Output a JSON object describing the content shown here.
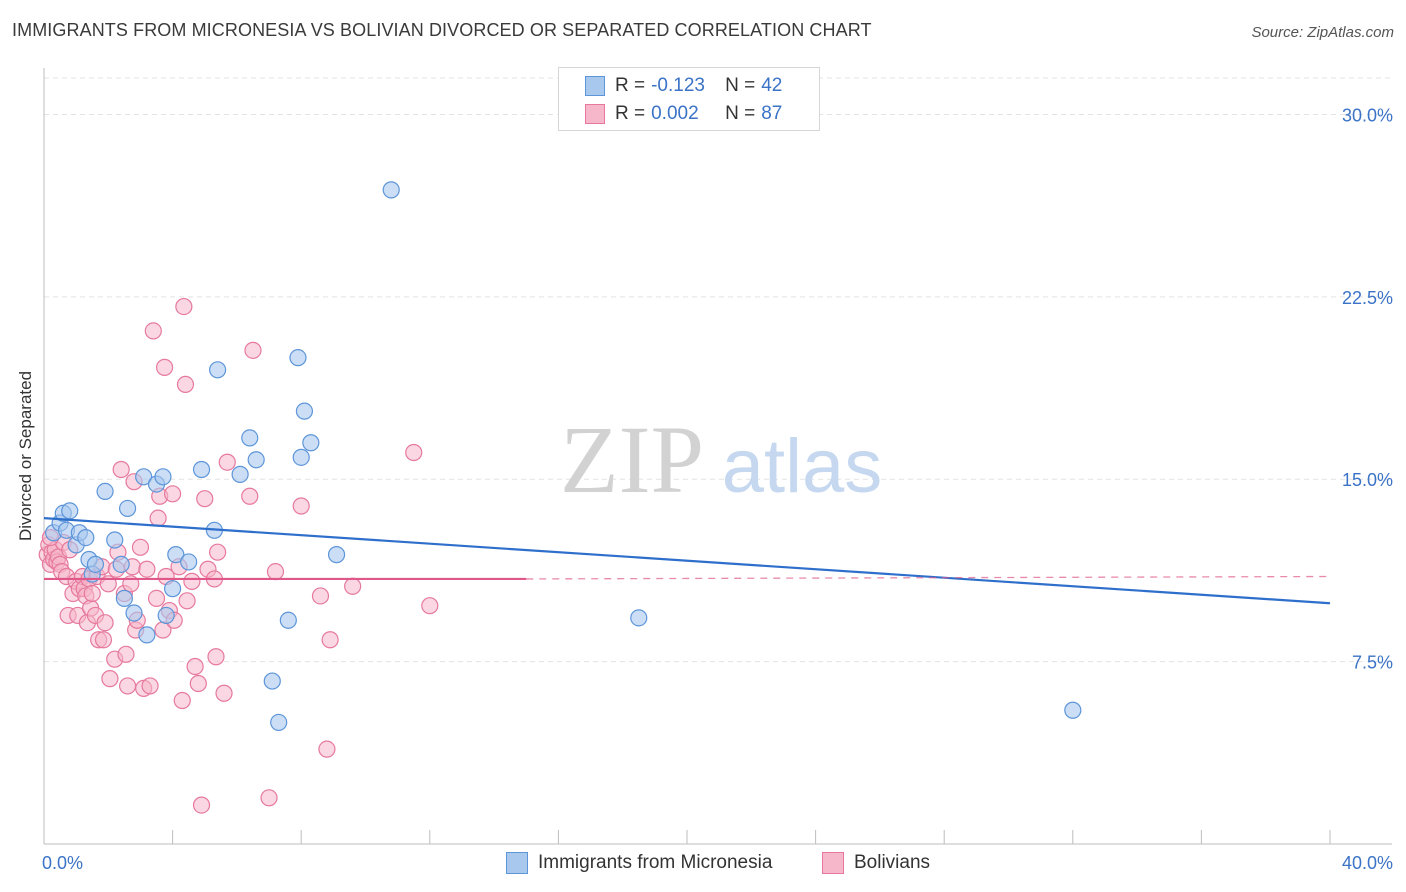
{
  "header": {
    "title": "IMMIGRANTS FROM MICRONESIA VS BOLIVIAN DIVORCED OR SEPARATED CORRELATION CHART",
    "source": "Source: ZipAtlas.com"
  },
  "watermark": {
    "zip": "ZIP",
    "atlas": "atlas"
  },
  "legend": {
    "rows": [
      {
        "r_label": "R = ",
        "r_value": "-0.123",
        "n_label": "N = ",
        "n_value": "42"
      },
      {
        "r_label": "R = ",
        "r_value": "0.002",
        "n_label": "N = ",
        "n_value": "87"
      }
    ]
  },
  "bottom_legend": {
    "series_a": "Immigrants from Micronesia",
    "series_b": "Bolivians"
  },
  "colors": {
    "blue_fill": "#a9c8ee",
    "blue_stroke": "#5d95d9",
    "blue_line": "#2f6fcc",
    "pink_fill": "#f6b7cb",
    "pink_stroke": "#e6799d",
    "pink_line": "#e0588a",
    "tick_text": "#3b73c6",
    "grid": "#e3e3e3"
  },
  "chart_data": {
    "type": "scatter",
    "title": "IMMIGRANTS FROM MICRONESIA VS BOLIVIAN DIVORCED OR SEPARATED CORRELATION CHART",
    "xlabel": "",
    "ylabel": "Divorced or Separated",
    "xlim": [
      0,
      40
    ],
    "ylim": [
      0,
      31.5
    ],
    "x_tick_labels": [
      "0.0%",
      "40.0%"
    ],
    "y_ticks": [
      7.5,
      15.0,
      22.5,
      30.0
    ],
    "y_tick_labels": [
      "7.5%",
      "15.0%",
      "22.5%",
      "30.0%"
    ],
    "series": [
      {
        "name": "Immigrants from Micronesia",
        "R": -0.123,
        "N": 42,
        "trend": {
          "x": [
            0,
            40
          ],
          "y": [
            13.4,
            9.9
          ]
        },
        "points": [
          [
            0.3,
            12.8
          ],
          [
            0.5,
            13.2
          ],
          [
            0.6,
            13.6
          ],
          [
            0.7,
            12.9
          ],
          [
            0.8,
            13.7
          ],
          [
            1.0,
            12.3
          ],
          [
            1.1,
            12.8
          ],
          [
            1.3,
            12.6
          ],
          [
            1.4,
            11.7
          ],
          [
            1.5,
            11.1
          ],
          [
            1.6,
            11.5
          ],
          [
            1.9,
            14.5
          ],
          [
            2.2,
            12.5
          ],
          [
            2.4,
            11.5
          ],
          [
            2.5,
            10.1
          ],
          [
            2.6,
            13.8
          ],
          [
            2.8,
            9.5
          ],
          [
            3.1,
            15.1
          ],
          [
            3.2,
            8.6
          ],
          [
            3.5,
            14.8
          ],
          [
            3.7,
            15.1
          ],
          [
            3.8,
            9.4
          ],
          [
            4.0,
            10.5
          ],
          [
            4.1,
            11.9
          ],
          [
            4.5,
            11.6
          ],
          [
            4.9,
            15.4
          ],
          [
            5.3,
            12.9
          ],
          [
            5.4,
            19.5
          ],
          [
            6.1,
            15.2
          ],
          [
            6.4,
            16.7
          ],
          [
            6.6,
            15.8
          ],
          [
            7.1,
            6.7
          ],
          [
            7.3,
            5.0
          ],
          [
            7.6,
            9.2
          ],
          [
            7.9,
            20.0
          ],
          [
            8.0,
            15.9
          ],
          [
            8.1,
            17.8
          ],
          [
            8.3,
            16.5
          ],
          [
            9.1,
            11.9
          ],
          [
            10.8,
            26.9
          ],
          [
            18.5,
            9.3
          ],
          [
            32.0,
            5.5
          ]
        ]
      },
      {
        "name": "Bolivians",
        "R": 0.002,
        "N": 87,
        "trend": {
          "x": [
            0,
            15
          ],
          "y": [
            10.9,
            10.9
          ]
        },
        "trend_dashed": {
          "x": [
            15,
            40
          ],
          "y": [
            10.9,
            11.0
          ]
        },
        "points": [
          [
            0.1,
            11.9
          ],
          [
            0.15,
            12.3
          ],
          [
            0.2,
            11.5
          ],
          [
            0.25,
            12.0
          ],
          [
            0.3,
            11.7
          ],
          [
            0.35,
            12.1
          ],
          [
            0.4,
            11.6
          ],
          [
            0.45,
            11.8
          ],
          [
            0.5,
            11.5
          ],
          [
            0.55,
            11.2
          ],
          [
            0.6,
            12.4
          ],
          [
            0.7,
            11.0
          ],
          [
            0.75,
            9.4
          ],
          [
            0.8,
            12.1
          ],
          [
            0.9,
            10.3
          ],
          [
            1.0,
            10.8
          ],
          [
            1.05,
            9.4
          ],
          [
            1.1,
            10.5
          ],
          [
            1.2,
            11.0
          ],
          [
            1.25,
            10.5
          ],
          [
            1.3,
            10.2
          ],
          [
            1.35,
            9.1
          ],
          [
            1.4,
            10.9
          ],
          [
            1.45,
            9.7
          ],
          [
            1.5,
            10.3
          ],
          [
            1.6,
            9.4
          ],
          [
            1.65,
            11.0
          ],
          [
            1.7,
            8.4
          ],
          [
            1.8,
            11.4
          ],
          [
            1.85,
            8.4
          ],
          [
            1.9,
            9.1
          ],
          [
            2.0,
            10.7
          ],
          [
            2.05,
            6.8
          ],
          [
            2.2,
            7.6
          ],
          [
            2.25,
            11.3
          ],
          [
            2.3,
            12.0
          ],
          [
            2.4,
            15.4
          ],
          [
            2.5,
            10.3
          ],
          [
            2.55,
            7.8
          ],
          [
            2.6,
            6.5
          ],
          [
            2.7,
            10.7
          ],
          [
            2.75,
            11.4
          ],
          [
            2.8,
            14.9
          ],
          [
            2.85,
            8.8
          ],
          [
            2.9,
            9.2
          ],
          [
            3.0,
            12.2
          ],
          [
            3.1,
            6.4
          ],
          [
            3.2,
            11.3
          ],
          [
            3.3,
            6.5
          ],
          [
            3.4,
            21.1
          ],
          [
            3.5,
            10.1
          ],
          [
            3.55,
            13.4
          ],
          [
            3.6,
            14.3
          ],
          [
            3.7,
            8.8
          ],
          [
            3.75,
            19.6
          ],
          [
            3.8,
            11.0
          ],
          [
            3.9,
            9.6
          ],
          [
            4.0,
            14.4
          ],
          [
            4.05,
            9.2
          ],
          [
            4.2,
            11.4
          ],
          [
            4.3,
            5.9
          ],
          [
            4.35,
            22.1
          ],
          [
            4.4,
            18.9
          ],
          [
            4.45,
            10.0
          ],
          [
            4.6,
            10.8
          ],
          [
            4.7,
            7.3
          ],
          [
            4.8,
            6.6
          ],
          [
            4.9,
            1.6
          ],
          [
            5.0,
            14.2
          ],
          [
            5.1,
            11.3
          ],
          [
            5.3,
            10.9
          ],
          [
            5.35,
            7.7
          ],
          [
            5.4,
            12.0
          ],
          [
            5.6,
            6.2
          ],
          [
            5.7,
            15.7
          ],
          [
            6.4,
            14.3
          ],
          [
            6.5,
            20.3
          ],
          [
            7.0,
            1.9
          ],
          [
            7.2,
            11.2
          ],
          [
            8.0,
            13.9
          ],
          [
            8.6,
            10.2
          ],
          [
            8.8,
            3.9
          ],
          [
            8.9,
            8.4
          ],
          [
            9.6,
            10.6
          ],
          [
            11.5,
            16.1
          ],
          [
            12.0,
            9.8
          ],
          [
            0.2,
            12.6
          ]
        ]
      }
    ]
  }
}
